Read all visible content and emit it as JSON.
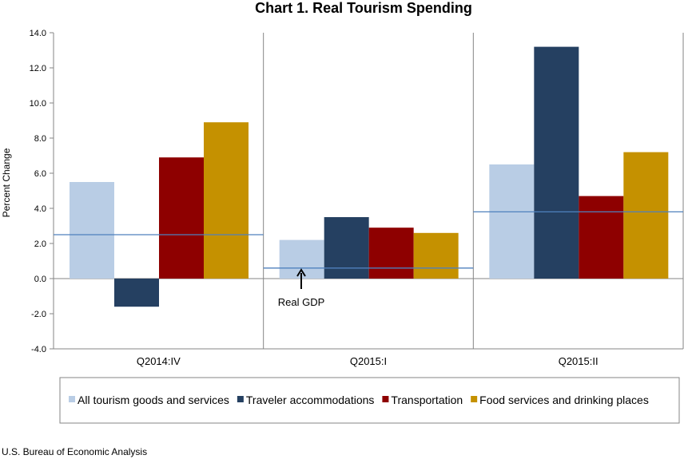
{
  "chart_data": {
    "type": "bar",
    "title": "Chart 1. Real Tourism Spending",
    "ylabel": "Percent Change",
    "xlabel": "",
    "ylim": [
      -4,
      14
    ],
    "yticks": [
      "14.0",
      "12.0",
      "10.0",
      "8.0",
      "6.0",
      "4.0",
      "2.0",
      "0.0",
      "-2.0",
      "-4.0"
    ],
    "categories": [
      "Q2014:IV",
      "Q2015:I",
      "Q2015:II"
    ],
    "series": [
      {
        "name": "All tourism goods and services",
        "color": "#b9cde5",
        "values": [
          5.5,
          2.2,
          6.5
        ]
      },
      {
        "name": "Traveler accommodations",
        "color": "#254061",
        "values": [
          -1.6,
          3.5,
          13.2
        ]
      },
      {
        "name": "Transportation",
        "color": "#8e0000",
        "values": [
          6.9,
          2.9,
          4.7
        ]
      },
      {
        "name": "Food services and drinking places",
        "color": "#c59100",
        "values": [
          8.9,
          2.6,
          7.2
        ]
      }
    ],
    "reference_line": {
      "name": "Real GDP",
      "color": "#4f81bd",
      "values": [
        2.5,
        0.6,
        3.8
      ]
    },
    "annotation": "Real GDP",
    "legend_position": "bottom",
    "grid": false
  },
  "source": "U.S. Bureau of Economic Analysis"
}
